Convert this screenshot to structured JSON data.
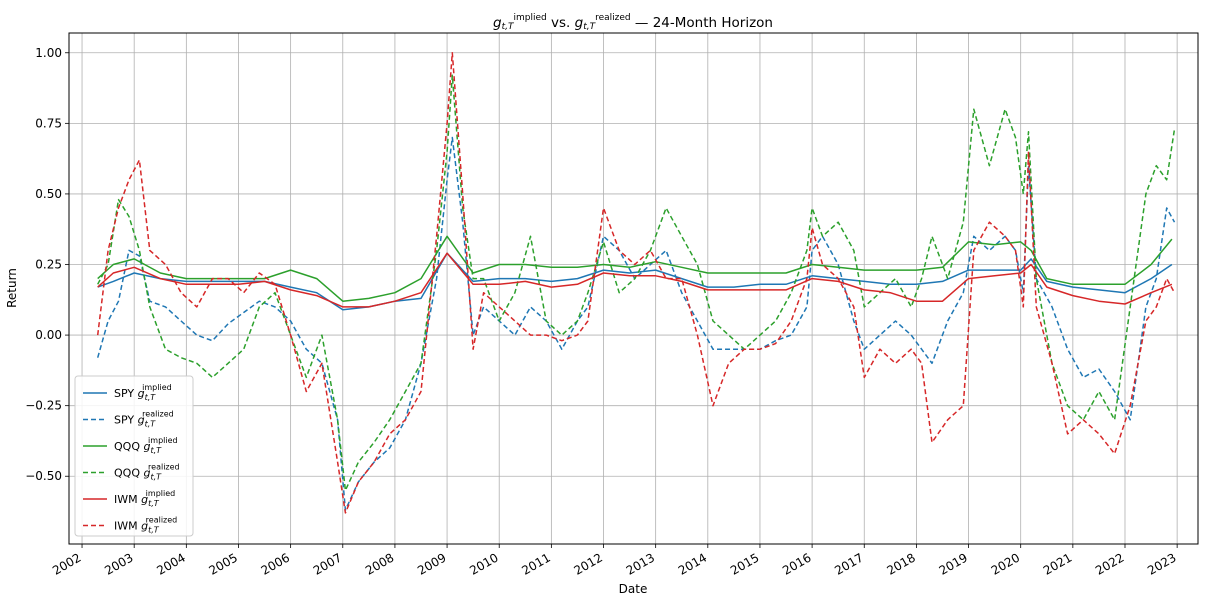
{
  "chart_data": {
    "type": "line",
    "title": {
      "g": "g",
      "sub": "t,T",
      "sup1": "implied",
      "vs": " vs. ",
      "sup2": "realized",
      "tail": " — 24-Month Horizon"
    },
    "xlabel": "Date",
    "ylabel": "Return",
    "x_ticks": [
      "2002",
      "2003",
      "2004",
      "2005",
      "2006",
      "2007",
      "2008",
      "2009",
      "2010",
      "2011",
      "2012",
      "2013",
      "2014",
      "2015",
      "2016",
      "2017",
      "2018",
      "2019",
      "2020",
      "2021",
      "2022",
      "2023"
    ],
    "y_ticks": [
      "−0.50",
      "−0.25",
      "0.00",
      "0.25",
      "0.50",
      "0.75",
      "1.00"
    ],
    "y_tick_values": [
      -0.5,
      -0.25,
      0,
      0.25,
      0.5,
      0.75,
      1.0
    ],
    "xlim": [
      2001.75,
      2023.4
    ],
    "ylim": [
      -0.74,
      1.07
    ],
    "grid": true,
    "legend_position": "lower-left",
    "series": [
      {
        "name": "SPY",
        "label_sup": "implied",
        "label_sub": "t,T",
        "color": "#1f77b4",
        "dash": false,
        "x": [
          2002.3,
          2002.6,
          2003.0,
          2003.5,
          2004.0,
          2004.5,
          2005.0,
          2005.5,
          2006.0,
          2006.5,
          2007.0,
          2007.5,
          2008.0,
          2008.5,
          2009.0,
          2009.5,
          2010.0,
          2010.5,
          2011.0,
          2011.5,
          2012.0,
          2012.5,
          2013.0,
          2013.5,
          2014.0,
          2014.5,
          2015.0,
          2015.5,
          2016.0,
          2016.5,
          2017.0,
          2017.5,
          2018.0,
          2018.5,
          2019.0,
          2019.5,
          2020.0,
          2020.2,
          2020.5,
          2021.0,
          2021.5,
          2022.0,
          2022.5,
          2022.9
        ],
        "y": [
          0.17,
          0.19,
          0.22,
          0.2,
          0.19,
          0.19,
          0.19,
          0.19,
          0.17,
          0.15,
          0.09,
          0.1,
          0.12,
          0.13,
          0.29,
          0.19,
          0.2,
          0.2,
          0.19,
          0.2,
          0.23,
          0.22,
          0.23,
          0.2,
          0.17,
          0.17,
          0.18,
          0.18,
          0.21,
          0.2,
          0.19,
          0.18,
          0.18,
          0.19,
          0.23,
          0.23,
          0.23,
          0.27,
          0.19,
          0.17,
          0.16,
          0.15,
          0.2,
          0.25
        ]
      },
      {
        "name": "SPY",
        "label_sup": "realized",
        "label_sub": "t,T",
        "color": "#1f77b4",
        "dash": true,
        "x": [
          2002.3,
          2002.5,
          2002.7,
          2002.9,
          2003.1,
          2003.3,
          2003.6,
          2003.9,
          2004.2,
          2004.5,
          2004.8,
          2005.1,
          2005.4,
          2005.7,
          2006.0,
          2006.3,
          2006.6,
          2006.9,
          2007.05,
          2007.3,
          2007.6,
          2007.9,
          2008.2,
          2008.5,
          2008.8,
          2009.0,
          2009.1,
          2009.3,
          2009.5,
          2009.7,
          2010.0,
          2010.3,
          2010.6,
          2010.9,
          2011.2,
          2011.5,
          2011.7,
          2012.0,
          2012.3,
          2012.6,
          2012.9,
          2013.2,
          2013.5,
          2013.8,
          2014.1,
          2014.4,
          2014.7,
          2015.0,
          2015.3,
          2015.6,
          2015.9,
          2016.0,
          2016.2,
          2016.5,
          2016.8,
          2017.0,
          2017.3,
          2017.6,
          2017.9,
          2018.1,
          2018.3,
          2018.6,
          2018.9,
          2019.1,
          2019.4,
          2019.7,
          2019.9,
          2020.05,
          2020.15,
          2020.3,
          2020.6,
          2020.9,
          2021.2,
          2021.5,
          2021.8,
          2022.1,
          2022.4,
          2022.6,
          2022.8,
          2022.95
        ],
        "y": [
          -0.08,
          0.05,
          0.12,
          0.3,
          0.28,
          0.12,
          0.1,
          0.05,
          0.0,
          -0.02,
          0.04,
          0.08,
          0.12,
          0.1,
          0.05,
          -0.05,
          -0.1,
          -0.3,
          -0.62,
          -0.52,
          -0.45,
          -0.4,
          -0.3,
          -0.1,
          0.2,
          0.55,
          0.7,
          0.4,
          0.0,
          0.1,
          0.05,
          0.0,
          0.1,
          0.05,
          -0.05,
          0.05,
          0.1,
          0.35,
          0.3,
          0.2,
          0.25,
          0.3,
          0.15,
          0.05,
          -0.05,
          -0.05,
          -0.05,
          -0.05,
          -0.02,
          0.0,
          0.1,
          0.3,
          0.35,
          0.25,
          0.05,
          -0.05,
          0.0,
          0.05,
          0.0,
          -0.05,
          -0.1,
          0.05,
          0.15,
          0.35,
          0.3,
          0.35,
          0.3,
          0.15,
          0.6,
          0.2,
          0.1,
          -0.05,
          -0.15,
          -0.12,
          -0.2,
          -0.3,
          0.1,
          0.2,
          0.45,
          0.4
        ]
      },
      {
        "name": "QQQ",
        "label_sup": "implied",
        "label_sub": "t,T",
        "color": "#2ca02c",
        "dash": false,
        "x": [
          2002.3,
          2002.6,
          2003.0,
          2003.5,
          2004.0,
          2004.5,
          2005.0,
          2005.5,
          2006.0,
          2006.5,
          2007.0,
          2007.5,
          2008.0,
          2008.5,
          2009.0,
          2009.5,
          2010.0,
          2010.5,
          2011.0,
          2011.5,
          2012.0,
          2012.5,
          2013.0,
          2013.5,
          2014.0,
          2014.5,
          2015.0,
          2015.5,
          2016.0,
          2016.5,
          2017.0,
          2017.5,
          2018.0,
          2018.5,
          2019.0,
          2019.5,
          2020.0,
          2020.2,
          2020.5,
          2021.0,
          2021.5,
          2022.0,
          2022.5,
          2022.9
        ],
        "y": [
          0.2,
          0.25,
          0.27,
          0.22,
          0.2,
          0.2,
          0.2,
          0.2,
          0.23,
          0.2,
          0.12,
          0.13,
          0.15,
          0.2,
          0.35,
          0.22,
          0.25,
          0.25,
          0.24,
          0.24,
          0.25,
          0.24,
          0.26,
          0.24,
          0.22,
          0.22,
          0.22,
          0.22,
          0.25,
          0.24,
          0.23,
          0.23,
          0.23,
          0.24,
          0.33,
          0.32,
          0.33,
          0.3,
          0.2,
          0.18,
          0.18,
          0.18,
          0.25,
          0.34
        ]
      },
      {
        "name": "QQQ",
        "label_sup": "realized",
        "label_sub": "t,T",
        "color": "#2ca02c",
        "dash": true,
        "x": [
          2002.3,
          2002.5,
          2002.7,
          2002.9,
          2003.1,
          2003.3,
          2003.6,
          2003.9,
          2004.2,
          2004.5,
          2004.8,
          2005.1,
          2005.4,
          2005.7,
          2006.0,
          2006.3,
          2006.6,
          2006.9,
          2007.05,
          2007.3,
          2007.6,
          2007.9,
          2008.2,
          2008.5,
          2008.8,
          2009.0,
          2009.1,
          2009.3,
          2009.5,
          2009.7,
          2010.0,
          2010.3,
          2010.6,
          2010.9,
          2011.2,
          2011.5,
          2011.7,
          2012.0,
          2012.3,
          2012.6,
          2012.9,
          2013.2,
          2013.5,
          2013.8,
          2014.1,
          2014.4,
          2014.7,
          2015.0,
          2015.3,
          2015.6,
          2015.9,
          2016.0,
          2016.2,
          2016.5,
          2016.8,
          2017.0,
          2017.3,
          2017.6,
          2017.9,
          2018.1,
          2018.3,
          2018.6,
          2018.9,
          2019.1,
          2019.4,
          2019.7,
          2019.9,
          2020.05,
          2020.15,
          2020.3,
          2020.6,
          2020.9,
          2021.2,
          2021.5,
          2021.8,
          2022.1,
          2022.4,
          2022.6,
          2022.8,
          2022.95
        ],
        "y": [
          0.18,
          0.25,
          0.48,
          0.42,
          0.3,
          0.1,
          -0.05,
          -0.08,
          -0.1,
          -0.15,
          -0.1,
          -0.05,
          0.1,
          0.15,
          0.0,
          -0.15,
          0.0,
          -0.3,
          -0.55,
          -0.45,
          -0.38,
          -0.3,
          -0.2,
          -0.1,
          0.3,
          0.65,
          0.92,
          0.45,
          0.2,
          0.2,
          0.05,
          0.15,
          0.35,
          0.05,
          0.0,
          0.05,
          0.15,
          0.33,
          0.15,
          0.2,
          0.3,
          0.45,
          0.35,
          0.25,
          0.05,
          0.0,
          -0.05,
          0.0,
          0.05,
          0.15,
          0.3,
          0.45,
          0.35,
          0.4,
          0.3,
          0.1,
          0.15,
          0.2,
          0.1,
          0.2,
          0.35,
          0.2,
          0.4,
          0.8,
          0.6,
          0.8,
          0.7,
          0.5,
          0.72,
          0.2,
          -0.1,
          -0.25,
          -0.3,
          -0.2,
          -0.3,
          0.1,
          0.5,
          0.6,
          0.55,
          0.73
        ]
      },
      {
        "name": "IWM",
        "label_sup": "implied",
        "label_sub": "t,T",
        "color": "#d62728",
        "dash": false,
        "x": [
          2002.3,
          2002.6,
          2003.0,
          2003.5,
          2004.0,
          2004.5,
          2005.0,
          2005.5,
          2006.0,
          2006.5,
          2007.0,
          2007.5,
          2008.0,
          2008.5,
          2009.0,
          2009.5,
          2010.0,
          2010.5,
          2011.0,
          2011.5,
          2012.0,
          2012.5,
          2013.0,
          2013.5,
          2014.0,
          2014.5,
          2015.0,
          2015.5,
          2016.0,
          2016.5,
          2017.0,
          2017.5,
          2018.0,
          2018.5,
          2019.0,
          2019.5,
          2020.0,
          2020.2,
          2020.5,
          2021.0,
          2021.5,
          2022.0,
          2022.5,
          2022.9
        ],
        "y": [
          0.17,
          0.22,
          0.24,
          0.2,
          0.18,
          0.18,
          0.18,
          0.19,
          0.16,
          0.14,
          0.1,
          0.1,
          0.12,
          0.15,
          0.29,
          0.18,
          0.18,
          0.19,
          0.17,
          0.18,
          0.22,
          0.21,
          0.21,
          0.19,
          0.16,
          0.16,
          0.16,
          0.16,
          0.2,
          0.19,
          0.16,
          0.15,
          0.12,
          0.12,
          0.2,
          0.21,
          0.22,
          0.25,
          0.17,
          0.14,
          0.12,
          0.11,
          0.15,
          0.18
        ]
      },
      {
        "name": "IWM",
        "label_sup": "realized",
        "label_sub": "t,T",
        "color": "#d62728",
        "dash": true,
        "x": [
          2002.3,
          2002.5,
          2002.7,
          2002.9,
          2003.1,
          2003.3,
          2003.6,
          2003.9,
          2004.2,
          2004.5,
          2004.8,
          2005.1,
          2005.4,
          2005.7,
          2006.0,
          2006.3,
          2006.6,
          2006.9,
          2007.05,
          2007.3,
          2007.6,
          2007.9,
          2008.2,
          2008.5,
          2008.8,
          2009.0,
          2009.1,
          2009.3,
          2009.5,
          2009.7,
          2010.0,
          2010.3,
          2010.6,
          2010.9,
          2011.2,
          2011.5,
          2011.7,
          2012.0,
          2012.3,
          2012.6,
          2012.9,
          2013.2,
          2013.5,
          2013.8,
          2014.1,
          2014.4,
          2014.7,
          2015.0,
          2015.3,
          2015.6,
          2015.9,
          2016.0,
          2016.2,
          2016.5,
          2016.8,
          2017.0,
          2017.3,
          2017.6,
          2017.9,
          2018.1,
          2018.3,
          2018.6,
          2018.9,
          2019.1,
          2019.4,
          2019.7,
          2019.9,
          2020.05,
          2020.15,
          2020.3,
          2020.6,
          2020.9,
          2021.2,
          2021.5,
          2021.8,
          2022.1,
          2022.4,
          2022.6,
          2022.8,
          2022.95
        ],
        "y": [
          0.0,
          0.3,
          0.45,
          0.55,
          0.62,
          0.3,
          0.25,
          0.15,
          0.1,
          0.2,
          0.2,
          0.15,
          0.22,
          0.18,
          0.0,
          -0.2,
          -0.1,
          -0.45,
          -0.63,
          -0.52,
          -0.45,
          -0.35,
          -0.3,
          -0.2,
          0.35,
          0.75,
          1.0,
          0.5,
          -0.05,
          0.15,
          0.1,
          0.05,
          0.0,
          0.0,
          -0.02,
          0.0,
          0.05,
          0.45,
          0.3,
          0.25,
          0.3,
          0.2,
          0.2,
          0.0,
          -0.25,
          -0.1,
          -0.05,
          -0.05,
          -0.03,
          0.05,
          0.2,
          0.38,
          0.25,
          0.2,
          0.1,
          -0.15,
          -0.05,
          -0.1,
          -0.05,
          -0.1,
          -0.38,
          -0.3,
          -0.25,
          0.3,
          0.4,
          0.35,
          0.3,
          0.1,
          0.65,
          0.1,
          -0.1,
          -0.35,
          -0.3,
          -0.35,
          -0.42,
          -0.25,
          0.05,
          0.1,
          0.2,
          0.15
        ]
      }
    ]
  }
}
